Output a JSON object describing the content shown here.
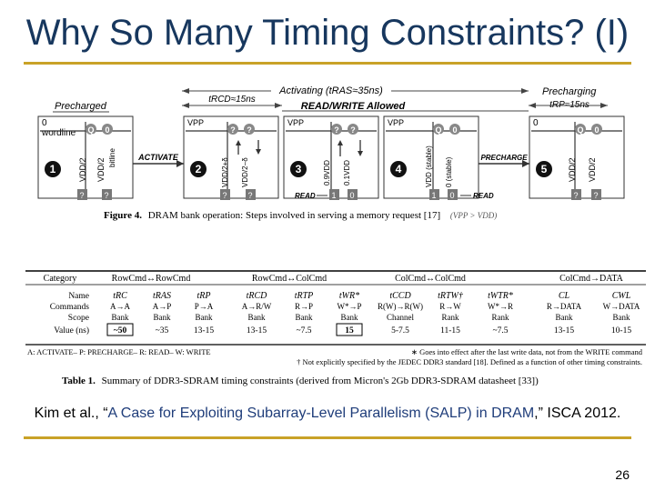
{
  "slide": {
    "title": "Why So Many Timing Constraints? (I)",
    "page_number": "26"
  },
  "figure4": {
    "labels": {
      "precharged": "Precharged",
      "activating": "Activating (tRAS≈35ns)",
      "trcd": "tRCD≈15ns",
      "readwrite_allowed": "READ/WRITE Allowed",
      "precharging": "Precharging",
      "trp": "tRP≈15ns",
      "wordline": "wordline",
      "bitline": "bitline",
      "zero": "0",
      "q": "Q",
      "qmark": "?",
      "one": "1",
      "vpp": "VPP",
      "vdd_half": "VDD/2",
      "vdd_half_plus": "VDD/2+δ",
      "vdd_half_minus": "VDD/2−δ",
      "v09": "0.9VDD",
      "v01": "0.1VDD",
      "vdd_stable": "VDD (stable)",
      "zero_stable": "0 (stable)",
      "activate": "ACTIVATE",
      "precharge": "PRECHARGE",
      "read": "READ",
      "step1": "1",
      "step2": "2",
      "step3": "3",
      "step4": "4",
      "step5": "5"
    },
    "caption_bold": "Figure 4.",
    "caption_text": "DRAM bank operation: Steps involved in serving a memory request [17]",
    "caption_note": "(VPP > VDD)"
  },
  "table1": {
    "categories": [
      "Category",
      "RowCmd↔RowCmd",
      "RowCmd↔ColCmd",
      "ColCmd↔ColCmd",
      "ColCmd→DATA"
    ],
    "row_labels": [
      "Name",
      "Commands",
      "Scope",
      "Value (ns)"
    ],
    "columns": [
      {
        "name": "tRC",
        "cmd": "A→A",
        "scope": "Bank",
        "value": "~50"
      },
      {
        "name": "tRAS",
        "cmd": "A→P",
        "scope": "Bank",
        "value": "~35"
      },
      {
        "name": "tRP",
        "cmd": "P→A",
        "scope": "Bank",
        "value": "13-15"
      },
      {
        "name": "tRCD",
        "cmd": "A→R/W",
        "scope": "Bank",
        "value": "13-15"
      },
      {
        "name": "tRTP",
        "cmd": "R→P",
        "scope": "Bank",
        "value": "~7.5"
      },
      {
        "name": "tWR*",
        "cmd": "W*→P",
        "scope": "Bank",
        "value": "15"
      },
      {
        "name": "tCCD",
        "cmd": "R(W)→R(W)",
        "scope": "Channel",
        "value": "5-7.5"
      },
      {
        "name": "tRTW†",
        "cmd": "R→W",
        "scope": "Rank",
        "value": "11-15"
      },
      {
        "name": "tWTR*",
        "cmd": "W*→R",
        "scope": "Rank",
        "value": "~7.5"
      },
      {
        "name": "CL",
        "cmd": "R→DATA",
        "scope": "Bank",
        "value": "13-15"
      },
      {
        "name": "CWL",
        "cmd": "W→DATA",
        "scope": "Bank",
        "value": "10-15"
      }
    ],
    "legend": "A: ACTIVATE– P: PRECHARGE– R: READ– W: WRITE",
    "note1": "∗ Goes into effect after the last write data, not from the WRITE command",
    "note2": "† Not explicitly specified by the JEDEC DDR3 standard [18]. Defined as a function of other timing constraints.",
    "caption_bold": "Table 1.",
    "caption_text": "Summary of DDR3-SDRAM timing constraints (derived from Micron's 2Gb DDR3-SDRAM datasheet [33])"
  },
  "citation": {
    "authors": "Kim et al., “",
    "paper_title": "A Case for Exploiting Subarray-Level Parallelism (SALP) in DRAM",
    "venue": ",” ISCA 2012."
  }
}
